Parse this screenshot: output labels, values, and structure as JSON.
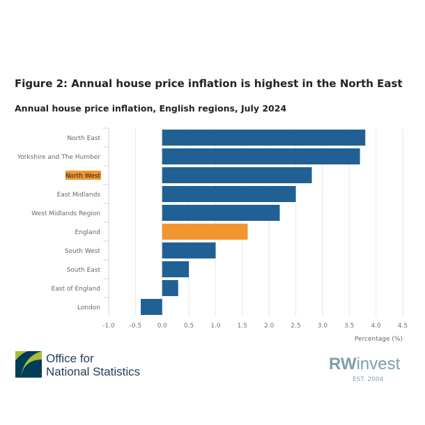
{
  "chart_data": {
    "type": "bar",
    "orientation": "horizontal",
    "title": "Figure 2: Annual house price inflation is highest in the North East",
    "subtitle": "Annual house price inflation, English regions, July 2024",
    "categories": [
      "North East",
      "Yorkshire and The Humber",
      "North West",
      "East Midlands",
      "West Midlands Region",
      "England",
      "South West",
      "South East",
      "East of England",
      "London"
    ],
    "values": [
      3.8,
      3.7,
      2.8,
      2.5,
      2.2,
      1.6,
      1.0,
      0.5,
      0.3,
      -0.4
    ],
    "highlight": [
      "England"
    ],
    "highlight_label": "North West",
    "xlabel": "Percentage (%)",
    "xlim": [
      -1.0,
      4.5
    ],
    "xticks": [
      "-1.0",
      "-0.5",
      "0.0",
      "0.5",
      "1.0",
      "1.5",
      "2.0",
      "2.5",
      "3.0",
      "3.5",
      "4.0",
      "4.5"
    ],
    "grid": true,
    "colors": {
      "bar": "#206095",
      "highlight": "#f39431"
    }
  },
  "logos": {
    "ons_line1": "Office for",
    "ons_line2": "National Statistics",
    "rw_bold": "RW",
    "rw_rest": "invest",
    "rw_est": "EST. 2004"
  }
}
